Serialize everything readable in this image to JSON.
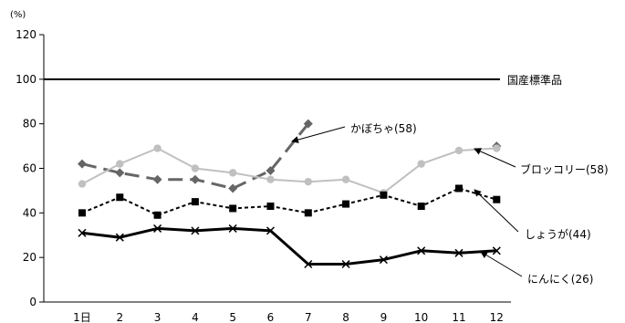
{
  "chart_data": {
    "type": "line",
    "ylabel": "(%)",
    "ylim": [
      0,
      120
    ],
    "yticks": [
      0,
      20,
      40,
      60,
      80,
      100,
      120
    ],
    "categories": [
      "1日",
      "2",
      "3",
      "4",
      "5",
      "6",
      "7",
      "8",
      "9",
      "10",
      "11",
      "12"
    ],
    "reference_line": {
      "label": "国産標準品",
      "value": 100
    },
    "grid": false,
    "series": [
      {
        "name": "かぼちゃ(58)",
        "values": [
          62,
          58,
          55,
          55,
          51,
          59,
          80,
          null,
          null,
          null,
          null,
          70
        ],
        "color": "#666666"
      },
      {
        "name": "ブロッコリー(58)",
        "values": [
          53,
          62,
          69,
          60,
          58,
          55,
          54,
          55,
          49,
          62,
          68,
          69
        ],
        "color": "#c0c0c0"
      },
      {
        "name": "しょうが(44)",
        "values": [
          40,
          47,
          39,
          45,
          42,
          43,
          40,
          44,
          48,
          43,
          51,
          46
        ],
        "color": "#000000"
      },
      {
        "name": "にんにく(26)",
        "values": [
          31,
          29,
          33,
          32,
          33,
          32,
          17,
          17,
          19,
          23,
          22,
          23
        ],
        "color": "#000000"
      }
    ]
  }
}
